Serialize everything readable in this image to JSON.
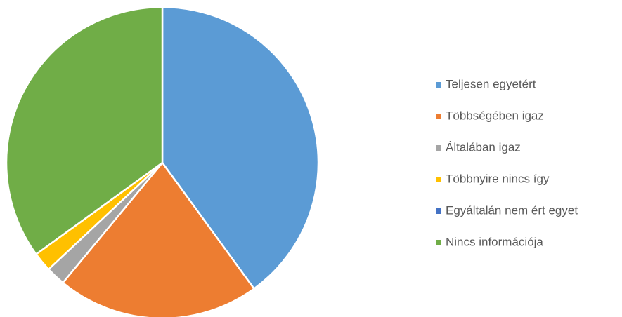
{
  "chart_data": {
    "type": "pie",
    "categories": [
      "Teljesen egyetért",
      "Többségében igaz",
      "Általában igaz",
      "Többnyire nincs így",
      "Egyáltalán nem ért egyet",
      "Nincs információja"
    ],
    "values": [
      40,
      21,
      2,
      2,
      0,
      35
    ],
    "colors": [
      "#5b9bd5",
      "#ed7d31",
      "#a5a5a5",
      "#ffc000",
      "#4472c4",
      "#70ad47"
    ],
    "legend": "right"
  }
}
